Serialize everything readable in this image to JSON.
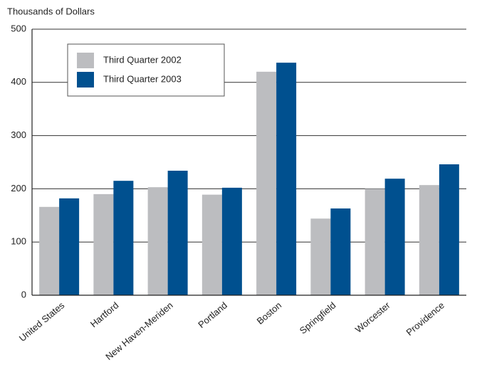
{
  "chart_data": {
    "type": "bar",
    "y_label": "Thousands of Dollars",
    "categories": [
      "United States",
      "Hartford",
      "New Haven-Meriden",
      "Portland",
      "Boston",
      "Springfield",
      "Worcester",
      "Providence"
    ],
    "series": [
      {
        "name": "Third Quarter 2002",
        "color": "#bcbdc0",
        "values": [
          166,
          190,
          203,
          189,
          420,
          144,
          200,
          207
        ]
      },
      {
        "name": "Third Quarter 2003",
        "color": "#00508f",
        "values": [
          182,
          215,
          234,
          202,
          437,
          163,
          219,
          246
        ]
      }
    ],
    "ylim": [
      0,
      500
    ],
    "yticks": [
      0,
      100,
      200,
      300,
      400,
      500
    ],
    "grid": true,
    "legend": "upper left"
  }
}
